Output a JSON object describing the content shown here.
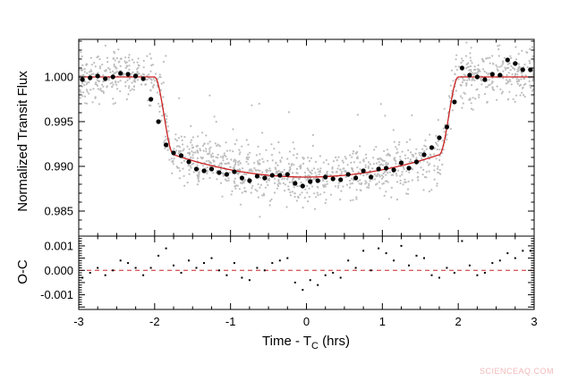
{
  "chart_data": [
    {
      "type": "scatter",
      "panel": "top",
      "xlim": [
        -3,
        3
      ],
      "ylim": [
        0.9822,
        1.0042
      ],
      "ylabel": "Normalized Transit Flux",
      "yticks": [
        0.985,
        0.99,
        0.995,
        1.0
      ],
      "ytick_labels": [
        "0.985",
        "0.990",
        "0.995",
        "1.000"
      ],
      "model": {
        "color": "#cc2222",
        "baseline": 1.0,
        "ingress_start": -2.0,
        "full_start": -1.75,
        "full_end": 1.75,
        "egress_end": 2.0,
        "bottom_edge": 0.9913,
        "bottom_center": 0.9888
      },
      "binned_points": {
        "color": "#000000",
        "x": [
          -2.95,
          -2.85,
          -2.75,
          -2.65,
          -2.55,
          -2.45,
          -2.35,
          -2.25,
          -2.15,
          -2.05,
          -1.95,
          -1.85,
          -1.75,
          -1.65,
          -1.55,
          -1.45,
          -1.35,
          -1.25,
          -1.15,
          -1.05,
          -0.95,
          -0.85,
          -0.75,
          -0.65,
          -0.55,
          -0.45,
          -0.35,
          -0.25,
          -0.15,
          -0.05,
          0.05,
          0.15,
          0.25,
          0.35,
          0.45,
          0.55,
          0.65,
          0.75,
          0.85,
          0.95,
          1.05,
          1.15,
          1.25,
          1.35,
          1.45,
          1.55,
          1.65,
          1.75,
          1.85,
          1.95,
          2.05,
          2.15,
          2.25,
          2.35,
          2.45,
          2.55,
          2.65,
          2.75,
          2.85,
          2.95
        ],
        "y": [
          0.9997,
          0.9999,
          1.0001,
          0.9998,
          1.0,
          1.0004,
          1.0003,
          1.0001,
          0.9998,
          0.9975,
          0.995,
          0.9924,
          0.9915,
          0.9912,
          0.9905,
          0.9897,
          0.9895,
          0.9897,
          0.9893,
          0.9891,
          0.9894,
          0.9887,
          0.9884,
          0.9889,
          0.9887,
          0.989,
          0.989,
          0.9891,
          0.9881,
          0.9878,
          0.9883,
          0.9884,
          0.9888,
          0.9886,
          0.9885,
          0.9891,
          0.9887,
          0.9895,
          0.9888,
          0.9897,
          0.9898,
          0.9896,
          0.9904,
          0.9898,
          0.9905,
          0.9913,
          0.9921,
          0.9932,
          0.9944,
          0.9972,
          1.001,
          1.0002,
          1.0,
          0.9997,
          1.0003,
          1.0002,
          1.0019,
          1.0015,
          1.0008,
          1.0008
        ]
      },
      "raw_points": {
        "color": "#bdbdbd",
        "description_only": false
      }
    },
    {
      "type": "scatter",
      "panel": "bottom",
      "xlim": [
        -3,
        3
      ],
      "ylim": [
        -0.0016,
        0.0014
      ],
      "ylabel": "O-C",
      "xlabel": "Time - T",
      "xlabel_sub": "C",
      "xlabel_suffix": " (hrs)",
      "yticks": [
        -0.001,
        0.0,
        0.001
      ],
      "ytick_labels": [
        "-0.001",
        "0.000",
        "0.001"
      ],
      "xticks": [
        -3,
        -2,
        -1,
        0,
        1,
        2,
        3
      ],
      "xtick_labels": [
        "-3",
        "-2",
        "-1",
        "0",
        "1",
        "2",
        "3"
      ],
      "zero_line_color": "#cc2222",
      "residuals": {
        "x": [
          -2.95,
          -2.85,
          -2.75,
          -2.65,
          -2.55,
          -2.45,
          -2.35,
          -2.25,
          -2.15,
          -2.05,
          -1.95,
          -1.85,
          -1.75,
          -1.65,
          -1.55,
          -1.45,
          -1.35,
          -1.25,
          -1.15,
          -1.05,
          -0.95,
          -0.85,
          -0.75,
          -0.65,
          -0.55,
          -0.45,
          -0.35,
          -0.25,
          -0.15,
          -0.05,
          0.05,
          0.15,
          0.25,
          0.35,
          0.45,
          0.55,
          0.65,
          0.75,
          0.85,
          0.95,
          1.05,
          1.15,
          1.25,
          1.35,
          1.45,
          1.55,
          1.65,
          1.75,
          1.85,
          1.95,
          2.05,
          2.15,
          2.25,
          2.35,
          2.45,
          2.55,
          2.65,
          2.75,
          2.85,
          2.95
        ],
        "y": [
          -0.0003,
          -0.0001,
          0.0001,
          -0.0002,
          0.0,
          0.0004,
          0.0003,
          0.0001,
          -0.0002,
          0.0001,
          0.0006,
          0.0009,
          0.0002,
          -0.0001,
          0.0004,
          0.0001,
          0.0003,
          0.0005,
          0.0,
          -0.0002,
          0.0003,
          -0.0003,
          -0.0004,
          0.0001,
          0.0,
          0.0003,
          0.0004,
          0.0005,
          -0.0005,
          -0.0008,
          -0.0004,
          -0.0006,
          -0.0002,
          -0.0001,
          -0.0003,
          0.0004,
          0.0001,
          0.0008,
          0.0,
          0.0009,
          0.0007,
          0.0004,
          0.001,
          0.0002,
          0.0006,
          0.0005,
          -0.0002,
          -0.0003,
          0.0001,
          -0.0001,
          0.0012,
          0.0002,
          -0.0002,
          -0.0001,
          0.0003,
          0.0004,
          0.0007,
          0.0005,
          0.0008,
          0.0008
        ]
      }
    }
  ],
  "watermark": "SCIENCEAQ.COM"
}
